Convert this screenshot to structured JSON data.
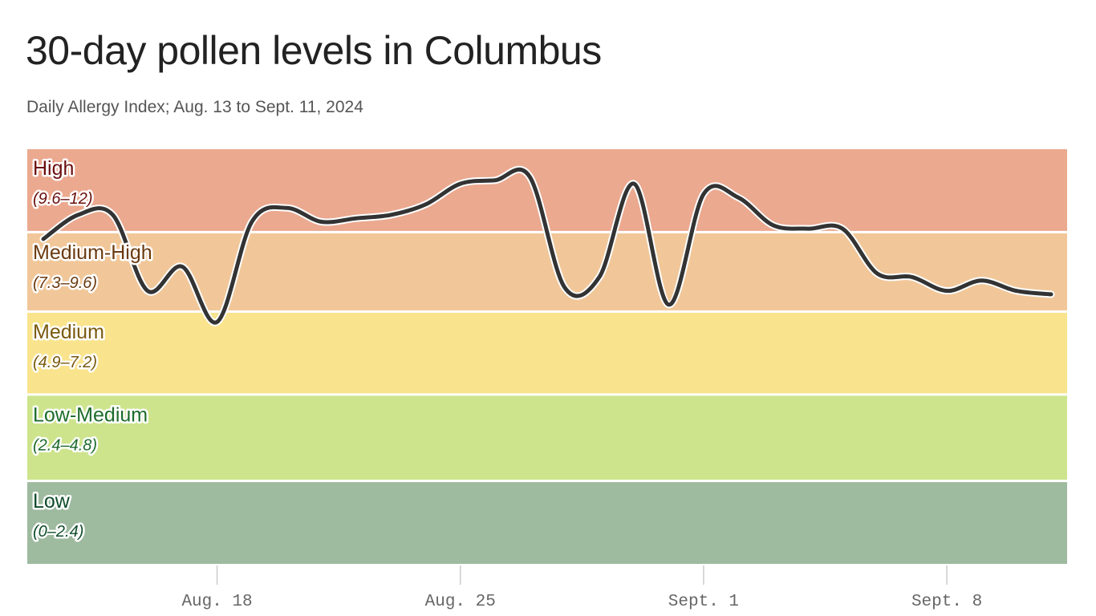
{
  "chart_data": {
    "type": "line",
    "title": "30-day pollen levels in Columbus",
    "subtitle": "Daily Allergy Index; Aug. 13 to Sept. 11, 2024",
    "xlabel": "",
    "ylabel": "",
    "ylim": [
      0,
      12
    ],
    "grid": false,
    "legend": "none",
    "line_color": "#333333",
    "bands": [
      {
        "name": "High",
        "range": "(9.6–12)",
        "min": 9.6,
        "max": 12,
        "color": "#eba98f",
        "text_color": "#6b0f0f"
      },
      {
        "name": "Medium-High",
        "range": "(7.3–9.6)",
        "min": 7.3,
        "max": 9.6,
        "color": "#f1c799",
        "text_color": "#6b3a10"
      },
      {
        "name": "Medium",
        "range": "(4.9–7.2)",
        "min": 4.9,
        "max": 7.3,
        "color": "#f9e48d",
        "text_color": "#7a5a0f"
      },
      {
        "name": "Low-Medium",
        "range": "(2.4–4.8)",
        "min": 2.4,
        "max": 4.9,
        "color": "#cde48c",
        "text_color": "#1d6b2c"
      },
      {
        "name": "Low",
        "range": "(0–2.4)",
        "min": 0,
        "max": 2.4,
        "color": "#9eba9f",
        "text_color": "#0f4d2a"
      }
    ],
    "x_ticks": [
      {
        "label": "Aug. 18",
        "x": "2024-08-18"
      },
      {
        "label": "Aug. 25",
        "x": "2024-08-25"
      },
      {
        "label": "Sept. 1",
        "x": "2024-09-01"
      },
      {
        "label": "Sept. 8",
        "x": "2024-09-08"
      }
    ],
    "x": [
      "2024-08-13",
      "2024-08-14",
      "2024-08-15",
      "2024-08-16",
      "2024-08-17",
      "2024-08-18",
      "2024-08-19",
      "2024-08-20",
      "2024-08-21",
      "2024-08-22",
      "2024-08-23",
      "2024-08-24",
      "2024-08-25",
      "2024-08-26",
      "2024-08-27",
      "2024-08-28",
      "2024-08-29",
      "2024-08-30",
      "2024-08-31",
      "2024-09-01",
      "2024-09-02",
      "2024-09-03",
      "2024-09-04",
      "2024-09-05",
      "2024-09-06",
      "2024-09-07",
      "2024-09-08",
      "2024-09-09",
      "2024-09-10",
      "2024-09-11"
    ],
    "series": [
      {
        "values": [
          9.4,
          10.1,
          10.1,
          7.9,
          8.6,
          7.0,
          9.9,
          10.3,
          9.9,
          10.0,
          10.1,
          10.4,
          11.0,
          11.1,
          11.2,
          8.0,
          8.3,
          11.0,
          7.5,
          10.7,
          10.6,
          9.8,
          9.7,
          9.7,
          8.4,
          8.3,
          7.9,
          8.2,
          7.9,
          7.8
        ]
      }
    ]
  }
}
